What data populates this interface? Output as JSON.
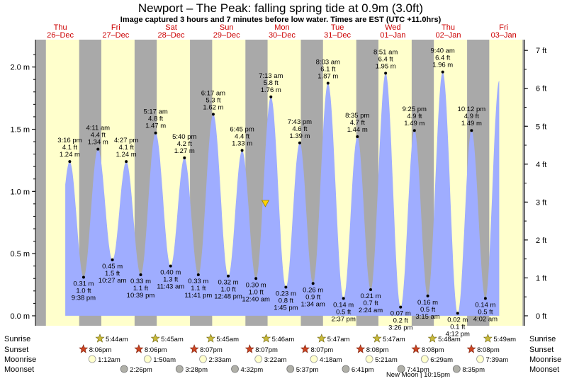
{
  "title": "Newport – The Peak: falling  spring tide at 0.9m (3.0ft)",
  "subtitle": "Image captured 3 hours and 7 minutes before low water. Times are EST (UTC +11.0hrs)",
  "colors": {
    "day": "#ffffcc",
    "night": "#a9a9a9",
    "water": "#9fadff",
    "label": "#cc0000",
    "marker": "#ffd400"
  },
  "days": [
    {
      "dow": "Thu",
      "date": "26–Dec"
    },
    {
      "dow": "Fri",
      "date": "27–Dec"
    },
    {
      "dow": "Sat",
      "date": "28–Dec"
    },
    {
      "dow": "Sun",
      "date": "29–Dec"
    },
    {
      "dow": "Mon",
      "date": "30–Dec"
    },
    {
      "dow": "Tue",
      "date": "31–Dec"
    },
    {
      "dow": "Wed",
      "date": "01–Jan"
    },
    {
      "dow": "Thu",
      "date": "02–Jan"
    },
    {
      "dow": "Fri",
      "date": "03–Jan"
    }
  ],
  "chart_data": {
    "type": "area",
    "ylabel_left": "m",
    "ylabel_right": "ft",
    "ylim_m": [
      -0.08,
      2.22
    ],
    "yticks_m": [
      "0.0 m",
      "0.5 m",
      "1.0 m",
      "1.5 m",
      "2.0 m"
    ],
    "yticks_ft": [
      "0 ft",
      "1 ft",
      "2 ft",
      "3 ft",
      "4 ft",
      "5 ft",
      "6 ft",
      "7 ft"
    ],
    "current": {
      "day": 4.2,
      "height_m": 0.9
    },
    "tides": [
      {
        "day": 0.67,
        "m": 1.24,
        "l1": "3:16 pm",
        "l2": "4.1 ft",
        "l3": "1.24 m",
        "type": "high"
      },
      {
        "day": 0.92,
        "m": 0.31,
        "l1": "0.31 m",
        "l2": "1.0 ft",
        "l3": "9:38 pm",
        "type": "low"
      },
      {
        "day": 1.18,
        "m": 1.34,
        "l1": "4:11 am",
        "l2": "4.4 ft",
        "l3": "1.34 m",
        "type": "high"
      },
      {
        "day": 1.44,
        "m": 0.45,
        "l1": "0.45 m",
        "l2": "1.5 ft",
        "l3": "10:27 am",
        "type": "low"
      },
      {
        "day": 1.69,
        "m": 1.24,
        "l1": "4:27 pm",
        "l2": "4.1 ft",
        "l3": "1.24 m",
        "type": "high"
      },
      {
        "day": 1.95,
        "m": 0.33,
        "l1": "0.33 m",
        "l2": "1.1 ft",
        "l3": "10:39 pm",
        "type": "low"
      },
      {
        "day": 2.22,
        "m": 1.47,
        "l1": "5:17 am",
        "l2": "4.8 ft",
        "l3": "1.47 m",
        "type": "high"
      },
      {
        "day": 2.49,
        "m": 0.4,
        "l1": "0.40 m",
        "l2": "1.3 ft",
        "l3": "11:43 am",
        "type": "low"
      },
      {
        "day": 2.74,
        "m": 1.27,
        "l1": "5:40 pm",
        "l2": "4.2 ft",
        "l3": "1.27 m",
        "type": "high"
      },
      {
        "day": 2.99,
        "m": 0.33,
        "l1": "0.33 m",
        "l2": "1.1 ft",
        "l3": "11:41 pm",
        "type": "low"
      },
      {
        "day": 3.26,
        "m": 1.62,
        "l1": "6:17 am",
        "l2": "5.3 ft",
        "l3": "1.62 m",
        "type": "high"
      },
      {
        "day": 3.53,
        "m": 0.32,
        "l1": "0.32 m",
        "l2": "1.0 ft",
        "l3": "12:48 pm",
        "type": "low"
      },
      {
        "day": 3.78,
        "m": 1.33,
        "l1": "6:45 pm",
        "l2": "4.4 ft",
        "l3": "1.33 m",
        "type": "high"
      },
      {
        "day": 4.03,
        "m": 0.3,
        "l1": "0.30 m",
        "l2": "1.0 ft",
        "l3": "12:40 am",
        "type": "low"
      },
      {
        "day": 4.3,
        "m": 1.76,
        "l1": "7:13 am",
        "l2": "5.8 ft",
        "l3": "1.76 m",
        "type": "high"
      },
      {
        "day": 4.57,
        "m": 0.23,
        "l1": "0.23 m",
        "l2": "0.8 ft",
        "l3": "1:45 pm",
        "type": "low"
      },
      {
        "day": 4.82,
        "m": 1.39,
        "l1": "7:43 pm",
        "l2": "4.6 ft",
        "l3": "1.39 m",
        "type": "high"
      },
      {
        "day": 5.06,
        "m": 0.26,
        "l1": "0.26 m",
        "l2": "0.9 ft",
        "l3": "1:34 am",
        "type": "low"
      },
      {
        "day": 5.33,
        "m": 1.87,
        "l1": "8:03 am",
        "l2": "6.1 ft",
        "l3": "1.87 m",
        "type": "high"
      },
      {
        "day": 5.61,
        "m": 0.14,
        "l1": "0.14 m",
        "l2": "0.5 ft",
        "l3": "2:37 pm",
        "type": "low"
      },
      {
        "day": 5.86,
        "m": 1.44,
        "l1": "8:35 pm",
        "l2": "4.7 ft",
        "l3": "1.44 m",
        "type": "high"
      },
      {
        "day": 6.1,
        "m": 0.21,
        "l1": "0.21 m",
        "l2": "0.7 ft",
        "l3": "2:24 am",
        "type": "low"
      },
      {
        "day": 6.37,
        "m": 1.95,
        "l1": "8:51 am",
        "l2": "6.4 ft",
        "l3": "1.95 m",
        "type": "high"
      },
      {
        "day": 6.64,
        "m": 0.07,
        "l1": "0.07 m",
        "l2": "0.2 ft",
        "l3": "3:26 pm",
        "type": "low"
      },
      {
        "day": 6.89,
        "m": 1.49,
        "l1": "9:25 pm",
        "l2": "4.9 ft",
        "l3": "1.49 m",
        "type": "high"
      },
      {
        "day": 7.13,
        "m": 0.16,
        "l1": "0.16 m",
        "l2": "0.5 ft",
        "l3": "3:15 am",
        "type": "low"
      },
      {
        "day": 7.4,
        "m": 1.96,
        "l1": "9:40 am",
        "l2": "6.4 ft",
        "l3": "1.96 m",
        "type": "high"
      },
      {
        "day": 7.67,
        "m": 0.02,
        "l1": "0.02 m",
        "l2": "0.1 ft",
        "l3": "4:12 pm",
        "type": "low"
      },
      {
        "day": 7.92,
        "m": 1.49,
        "l1": "10:12 pm",
        "l2": "4.9 ft",
        "l3": "1.49 m",
        "type": "high"
      },
      {
        "day": 8.17,
        "m": 0.14,
        "l1": "0.14 m",
        "l2": "0.5 ft",
        "l3": "4:02 am",
        "type": "low"
      },
      {
        "day": 8.42,
        "m": 1.89,
        "type": "end"
      }
    ],
    "sunrise_day_frac": 0.24,
    "sunset_day_frac": 0.84,
    "rows": {
      "sunrise": {
        "label": "Sunrise",
        "times": [
          "5:44am",
          "5:45am",
          "5:45am",
          "5:46am",
          "5:47am",
          "5:47am",
          "5:48am",
          "5:49am"
        ]
      },
      "sunset": {
        "label": "Sunset",
        "times": [
          "8:06pm",
          "8:06pm",
          "8:07pm",
          "8:07pm",
          "8:07pm",
          "8:08pm",
          "8:08pm",
          "8:08pm"
        ]
      },
      "moonrise": {
        "label": "Moonrise",
        "times": [
          "1:12am",
          "1:50am",
          "2:33am",
          "3:22am",
          "4:18am",
          "5:21am",
          "6:29am",
          "7:39am"
        ]
      },
      "moonset": {
        "label": "Moonset",
        "times": [
          "2:26pm",
          "3:28pm",
          "4:32pm",
          "5:37pm",
          "6:41pm",
          "7:41pm",
          "8:35pm"
        ]
      }
    },
    "moon_note": "New Moon | 10:15pm"
  }
}
